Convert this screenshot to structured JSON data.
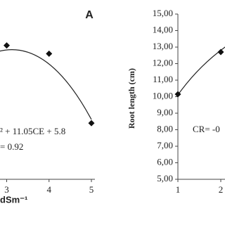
{
  "chart_data": [
    {
      "type": "scatter",
      "title": "A",
      "x_label": "dSm⁻¹",
      "annotations": [
        "² + 11.05CE + 5.8",
        "= 0.92"
      ],
      "x": [
        3,
        4,
        5
      ],
      "values": [
        13.1,
        12.6,
        8.4
      ],
      "color": "#111111",
      "xlim": [
        1,
        5
      ],
      "xticks": [
        3,
        4,
        5
      ],
      "ylim": [
        5,
        15
      ]
    },
    {
      "type": "scatter",
      "y_label": "Root length (cm)",
      "annotations": [
        "CR= -0"
      ],
      "x": [
        1,
        2
      ],
      "values": [
        10.15,
        12.7
      ],
      "color": "#111111",
      "xlim": [
        1,
        5
      ],
      "xticks": [
        1,
        2
      ],
      "ylim": [
        5,
        15
      ],
      "yticks": [
        {
          "value": 5,
          "label": "5,00"
        },
        {
          "value": 6,
          "label": "6,00"
        },
        {
          "value": 7,
          "label": "7,00"
        },
        {
          "value": 8,
          "label": "8,00"
        },
        {
          "value": 9,
          "label": "9,00"
        },
        {
          "value": 10,
          "label": "10,00"
        },
        {
          "value": 11,
          "label": "11,00"
        },
        {
          "value": 12,
          "label": "12,00"
        },
        {
          "value": 13,
          "label": "13,00"
        },
        {
          "value": 14,
          "label": "14,00"
        },
        {
          "value": 15,
          "label": "15,00"
        }
      ]
    }
  ]
}
